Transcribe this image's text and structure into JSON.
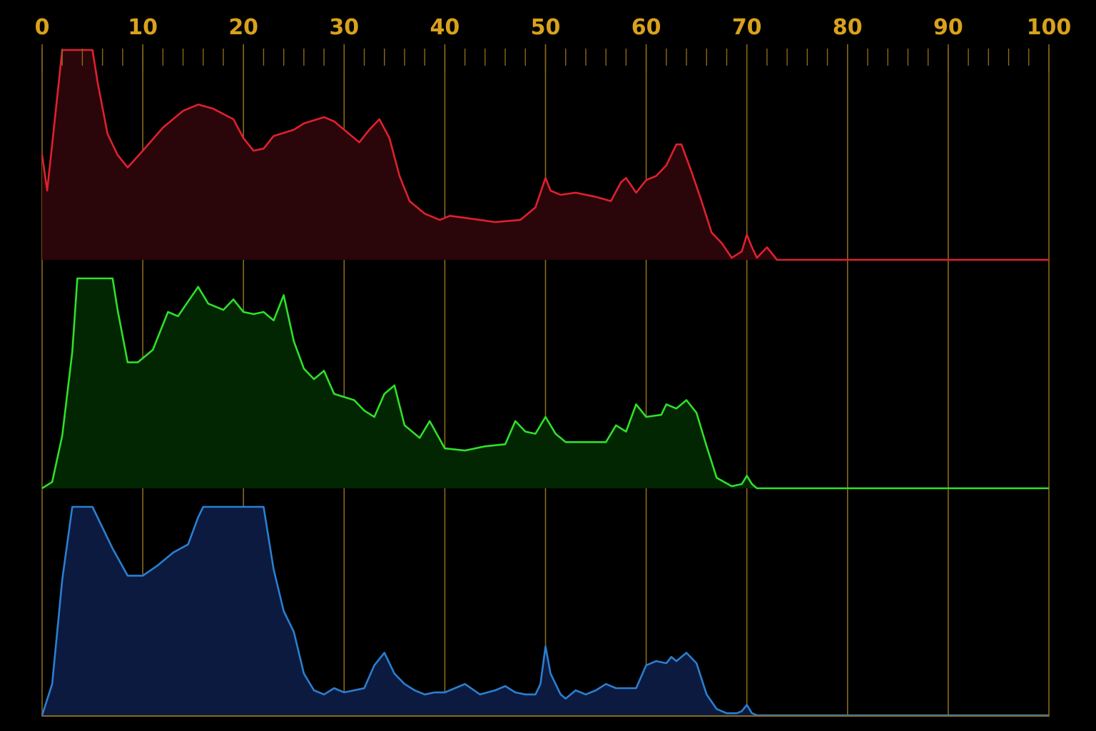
{
  "colors": {
    "background": "#000000",
    "axis": "#d9a21c",
    "grid": "#8a6a1a",
    "red_stroke": "#e0202e",
    "red_fill": "#2a0509",
    "green_stroke": "#2fe02a",
    "green_fill": "#022602",
    "blue_stroke": "#2a7fd0",
    "blue_fill": "#0c1a40"
  },
  "chart_data": {
    "type": "area",
    "x_range": [
      0,
      100
    ],
    "y_range": [
      0,
      1
    ],
    "grid": true,
    "x_ticks": [
      "0",
      "10",
      "20",
      "30",
      "40",
      "50",
      "60",
      "70",
      "80",
      "90",
      "100"
    ],
    "minor_tick_step": 2,
    "series": [
      {
        "channel": "red",
        "points": [
          [
            0,
            0.5
          ],
          [
            0.5,
            0.33
          ],
          [
            1,
            0.55
          ],
          [
            2,
            1.0
          ],
          [
            5,
            1.0
          ],
          [
            5.5,
            0.85
          ],
          [
            6.5,
            0.6
          ],
          [
            7.5,
            0.5
          ],
          [
            8.5,
            0.44
          ],
          [
            10,
            0.52
          ],
          [
            12,
            0.63
          ],
          [
            14,
            0.71
          ],
          [
            15.5,
            0.74
          ],
          [
            17,
            0.72
          ],
          [
            19,
            0.67
          ],
          [
            20,
            0.58
          ],
          [
            21,
            0.52
          ],
          [
            22,
            0.53
          ],
          [
            23,
            0.59
          ],
          [
            25,
            0.62
          ],
          [
            26,
            0.65
          ],
          [
            28,
            0.68
          ],
          [
            29,
            0.66
          ],
          [
            30.5,
            0.6
          ],
          [
            31.5,
            0.56
          ],
          [
            32.5,
            0.62
          ],
          [
            33.5,
            0.67
          ],
          [
            34.5,
            0.58
          ],
          [
            35.5,
            0.4
          ],
          [
            36.5,
            0.28
          ],
          [
            38,
            0.22
          ],
          [
            39.5,
            0.19
          ],
          [
            40.5,
            0.21
          ],
          [
            42,
            0.2
          ],
          [
            43.5,
            0.19
          ],
          [
            45,
            0.18
          ],
          [
            47.5,
            0.19
          ],
          [
            49,
            0.25
          ],
          [
            50,
            0.39
          ],
          [
            50.5,
            0.33
          ],
          [
            51.5,
            0.31
          ],
          [
            53,
            0.32
          ],
          [
            55,
            0.3
          ],
          [
            56.5,
            0.28
          ],
          [
            57.5,
            0.37
          ],
          [
            58,
            0.39
          ],
          [
            59,
            0.32
          ],
          [
            60,
            0.38
          ],
          [
            61,
            0.4
          ],
          [
            62,
            0.45
          ],
          [
            63,
            0.55
          ],
          [
            63.5,
            0.55
          ],
          [
            64.5,
            0.42
          ],
          [
            65.5,
            0.28
          ],
          [
            66.5,
            0.13
          ],
          [
            67.5,
            0.08
          ],
          [
            68.5,
            0.01
          ],
          [
            69.5,
            0.04
          ],
          [
            70,
            0.12
          ],
          [
            70.5,
            0.06
          ],
          [
            71,
            0.01
          ],
          [
            72,
            0.06
          ],
          [
            73,
            0.0
          ],
          [
            100,
            0.0
          ]
        ]
      },
      {
        "channel": "green",
        "points": [
          [
            0,
            0.0
          ],
          [
            1,
            0.03
          ],
          [
            2,
            0.25
          ],
          [
            3,
            0.65
          ],
          [
            3.5,
            1.0
          ],
          [
            7,
            1.0
          ],
          [
            7.5,
            0.85
          ],
          [
            8.5,
            0.6
          ],
          [
            9.5,
            0.6
          ],
          [
            11,
            0.66
          ],
          [
            12.5,
            0.84
          ],
          [
            13.5,
            0.82
          ],
          [
            14.5,
            0.89
          ],
          [
            15.5,
            0.96
          ],
          [
            16.5,
            0.88
          ],
          [
            18,
            0.85
          ],
          [
            19,
            0.9
          ],
          [
            20,
            0.84
          ],
          [
            21,
            0.83
          ],
          [
            22,
            0.84
          ],
          [
            23,
            0.8
          ],
          [
            24,
            0.92
          ],
          [
            25,
            0.7
          ],
          [
            26,
            0.57
          ],
          [
            27,
            0.52
          ],
          [
            28,
            0.56
          ],
          [
            29,
            0.45
          ],
          [
            31,
            0.42
          ],
          [
            32,
            0.37
          ],
          [
            33,
            0.34
          ],
          [
            34,
            0.45
          ],
          [
            35,
            0.49
          ],
          [
            36,
            0.3
          ],
          [
            37.5,
            0.24
          ],
          [
            38.5,
            0.32
          ],
          [
            40,
            0.19
          ],
          [
            42,
            0.18
          ],
          [
            44,
            0.2
          ],
          [
            46,
            0.21
          ],
          [
            47,
            0.32
          ],
          [
            48,
            0.27
          ],
          [
            49,
            0.26
          ],
          [
            50,
            0.34
          ],
          [
            51,
            0.26
          ],
          [
            52,
            0.22
          ],
          [
            54,
            0.22
          ],
          [
            56,
            0.22
          ],
          [
            57,
            0.3
          ],
          [
            58,
            0.27
          ],
          [
            59,
            0.4
          ],
          [
            60,
            0.34
          ],
          [
            61.5,
            0.35
          ],
          [
            62,
            0.4
          ],
          [
            63,
            0.38
          ],
          [
            64,
            0.42
          ],
          [
            65,
            0.36
          ],
          [
            66,
            0.2
          ],
          [
            67,
            0.05
          ],
          [
            68.5,
            0.01
          ],
          [
            69.5,
            0.02
          ],
          [
            70,
            0.06
          ],
          [
            70.5,
            0.02
          ],
          [
            71,
            0.0
          ],
          [
            100,
            0.0
          ]
        ]
      },
      {
        "channel": "blue",
        "points": [
          [
            0,
            0.0
          ],
          [
            1,
            0.15
          ],
          [
            2,
            0.65
          ],
          [
            3,
            1.0
          ],
          [
            5,
            1.0
          ],
          [
            6,
            0.9
          ],
          [
            7,
            0.8
          ],
          [
            8.5,
            0.67
          ],
          [
            10,
            0.67
          ],
          [
            11.5,
            0.72
          ],
          [
            13,
            0.78
          ],
          [
            14.5,
            0.82
          ],
          [
            15.5,
            0.95
          ],
          [
            16,
            1.0
          ],
          [
            22,
            1.0
          ],
          [
            23,
            0.7
          ],
          [
            24,
            0.5
          ],
          [
            25,
            0.4
          ],
          [
            26,
            0.2
          ],
          [
            27,
            0.12
          ],
          [
            28,
            0.1
          ],
          [
            29,
            0.13
          ],
          [
            30,
            0.11
          ],
          [
            31,
            0.12
          ],
          [
            32,
            0.13
          ],
          [
            33,
            0.24
          ],
          [
            34,
            0.3
          ],
          [
            35,
            0.2
          ],
          [
            36,
            0.15
          ],
          [
            37,
            0.12
          ],
          [
            38,
            0.1
          ],
          [
            39,
            0.11
          ],
          [
            40,
            0.11
          ],
          [
            42,
            0.15
          ],
          [
            43.5,
            0.1
          ],
          [
            45,
            0.12
          ],
          [
            46,
            0.14
          ],
          [
            47,
            0.11
          ],
          [
            48,
            0.1
          ],
          [
            49,
            0.1
          ],
          [
            49.5,
            0.15
          ],
          [
            50,
            0.33
          ],
          [
            50.5,
            0.2
          ],
          [
            51.5,
            0.1
          ],
          [
            52,
            0.08
          ],
          [
            53,
            0.12
          ],
          [
            54,
            0.1
          ],
          [
            55,
            0.12
          ],
          [
            56,
            0.15
          ],
          [
            57,
            0.13
          ],
          [
            58,
            0.13
          ],
          [
            59,
            0.13
          ],
          [
            60,
            0.24
          ],
          [
            61,
            0.26
          ],
          [
            62,
            0.25
          ],
          [
            62.5,
            0.28
          ],
          [
            63,
            0.26
          ],
          [
            64,
            0.3
          ],
          [
            65,
            0.25
          ],
          [
            66,
            0.1
          ],
          [
            67,
            0.03
          ],
          [
            68,
            0.01
          ],
          [
            69,
            0.01
          ],
          [
            69.5,
            0.02
          ],
          [
            70,
            0.05
          ],
          [
            70.5,
            0.01
          ],
          [
            71,
            0.0
          ],
          [
            100,
            0.0
          ]
        ]
      }
    ]
  }
}
